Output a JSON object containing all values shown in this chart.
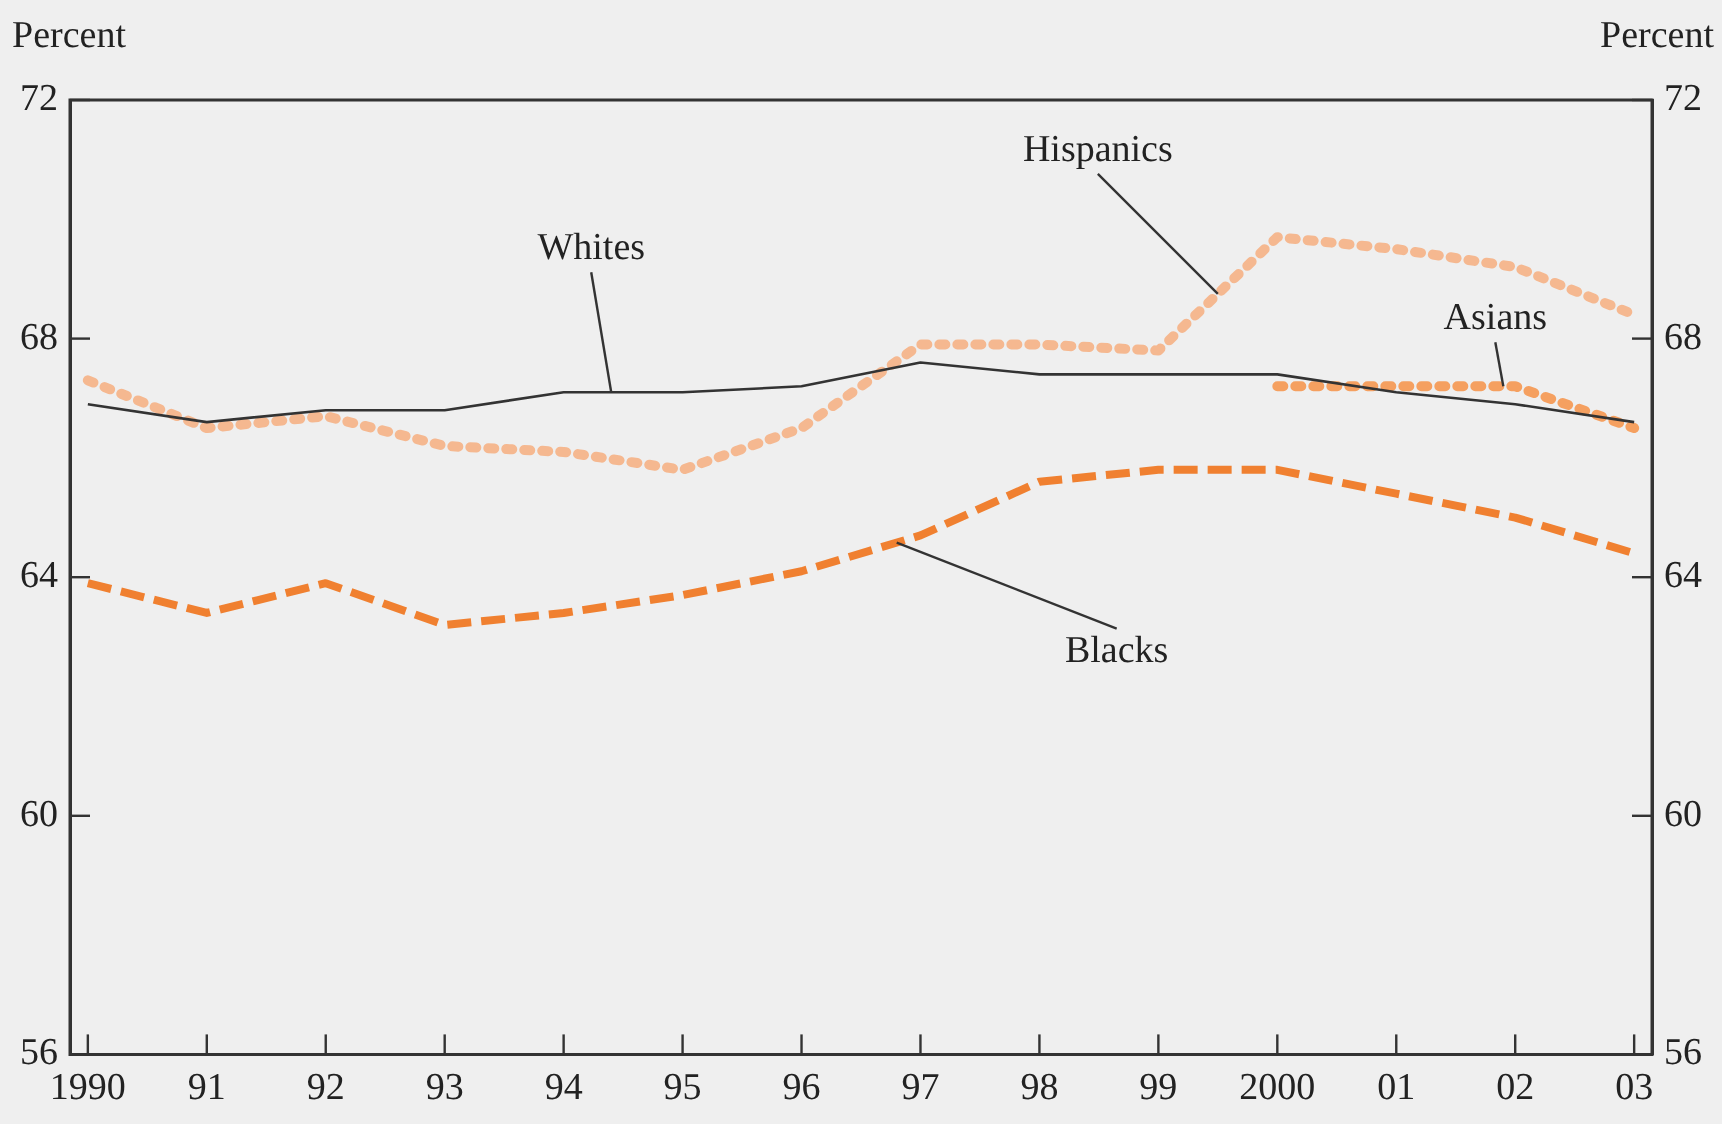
{
  "chart_data": {
    "type": "line",
    "ylabel": "Percent",
    "y2label": "Percent",
    "x": [
      1990,
      1991,
      1992,
      1993,
      1994,
      1995,
      1996,
      1997,
      1998,
      1999,
      2000,
      2001,
      2002,
      2003
    ],
    "xlim": [
      1989.85,
      2003.15
    ],
    "xticks": [
      {
        "value": 1990,
        "label": "1990"
      },
      {
        "value": 1991,
        "label": "91"
      },
      {
        "value": 1992,
        "label": "92"
      },
      {
        "value": 1993,
        "label": "93"
      },
      {
        "value": 1994,
        "label": "94"
      },
      {
        "value": 1995,
        "label": "95"
      },
      {
        "value": 1996,
        "label": "96"
      },
      {
        "value": 1997,
        "label": "97"
      },
      {
        "value": 1998,
        "label": "98"
      },
      {
        "value": 1999,
        "label": "99"
      },
      {
        "value": 2000,
        "label": "2000"
      },
      {
        "value": 2001,
        "label": "01"
      },
      {
        "value": 2002,
        "label": "02"
      },
      {
        "value": 2003,
        "label": "03"
      }
    ],
    "ylim": [
      56,
      72
    ],
    "yticks": [
      56,
      60,
      64,
      68,
      72
    ],
    "y2lim": [
      56,
      72
    ],
    "y2ticks": [
      56,
      60,
      64,
      68,
      72
    ],
    "grid": false,
    "legend": false,
    "marker": "none",
    "series": [
      {
        "name": "Whites",
        "color": "#333333",
        "line_style": "solid",
        "values": [
          66.9,
          66.6,
          66.8,
          66.8,
          67.1,
          67.1,
          67.2,
          67.6,
          67.4,
          67.4,
          67.4,
          67.1,
          66.9,
          66.6
        ]
      },
      {
        "name": "Blacks",
        "color": "#f08030",
        "line_style": "dashed",
        "values": [
          63.9,
          63.4,
          63.9,
          63.2,
          63.4,
          63.7,
          64.1,
          64.7,
          65.6,
          65.8,
          65.8,
          65.4,
          65.0,
          64.4
        ]
      },
      {
        "name": "Hispanics",
        "color": "#f5b890",
        "line_style": "dotted",
        "values": [
          67.3,
          66.5,
          66.7,
          66.2,
          66.1,
          65.8,
          66.5,
          67.9,
          67.9,
          67.8,
          69.7,
          69.5,
          69.2,
          68.4
        ]
      },
      {
        "name": "Asians",
        "color": "#f5a060",
        "line_style": "dotted",
        "values": [
          null,
          null,
          null,
          null,
          null,
          null,
          null,
          null,
          null,
          null,
          67.2,
          67.2,
          67.2,
          66.5
        ]
      }
    ]
  }
}
